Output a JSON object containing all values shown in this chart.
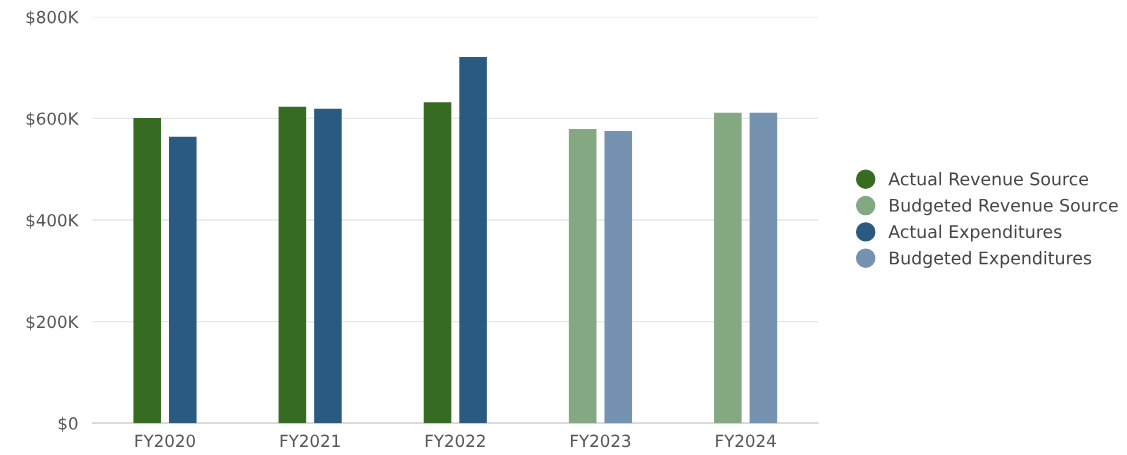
{
  "chart_data": {
    "type": "bar",
    "categories": [
      "FY2020",
      "FY2021",
      "FY2022",
      "FY2023",
      "FY2024"
    ],
    "series": [
      {
        "name": "Actual Revenue Source",
        "color": "#386b22",
        "values": [
          601,
          623,
          632,
          null,
          null
        ]
      },
      {
        "name": "Budgeted Revenue Source",
        "color": "#83a882",
        "values": [
          null,
          null,
          null,
          579,
          611
        ]
      },
      {
        "name": "Actual Expenditures",
        "color": "#2b5a80",
        "values": [
          564,
          619,
          721,
          null,
          null
        ]
      },
      {
        "name": "Budgeted Expenditures",
        "color": "#7592b0",
        "values": [
          null,
          null,
          null,
          575,
          611
        ]
      }
    ],
    "ylim": [
      0,
      800
    ],
    "yticks": [
      {
        "value": 0,
        "label": "$0"
      },
      {
        "value": 200,
        "label": "$200K"
      },
      {
        "value": 400,
        "label": "$400K"
      },
      {
        "value": 600,
        "label": "$600K"
      },
      {
        "value": 800,
        "label": "$800K"
      }
    ],
    "grid": "y",
    "legend": "right",
    "marker": "circle"
  }
}
